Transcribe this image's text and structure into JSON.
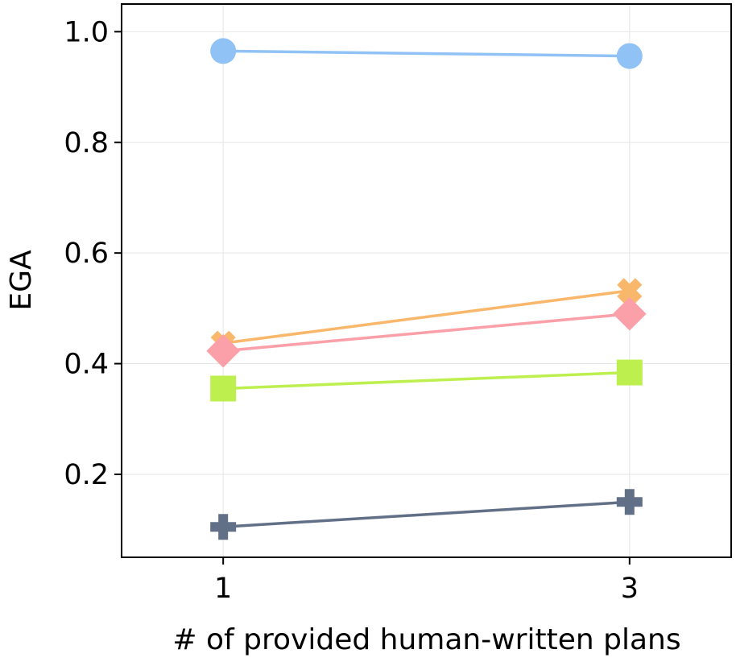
{
  "chart_data": {
    "type": "line",
    "title": "",
    "xlabel": "# of provided human-written plans",
    "ylabel": "EGA",
    "x": [
      1,
      3
    ],
    "x_tick_labels": [
      "1",
      "3"
    ],
    "y_ticks": [
      0.2,
      0.4,
      0.6,
      0.8,
      1.0
    ],
    "y_tick_labels": [
      "0.2",
      "0.4",
      "0.6",
      "0.8",
      "1.0"
    ],
    "xlim": [
      0.5,
      3.5
    ],
    "ylim": [
      0.05,
      1.05
    ],
    "grid": true,
    "legend": "none",
    "series": [
      {
        "values": [
          0.965,
          0.956
        ],
        "color": "#90c2f5",
        "marker": "circle"
      },
      {
        "values": [
          0.437,
          0.532
        ],
        "color": "#f9b76b",
        "marker": "x"
      },
      {
        "values": [
          0.423,
          0.49
        ],
        "color": "#fb9fa8",
        "marker": "diamond"
      },
      {
        "values": [
          0.355,
          0.384
        ],
        "color": "#bdf04e",
        "marker": "square"
      },
      {
        "values": [
          0.105,
          0.15
        ],
        "color": "#627087",
        "marker": "plus"
      }
    ]
  }
}
